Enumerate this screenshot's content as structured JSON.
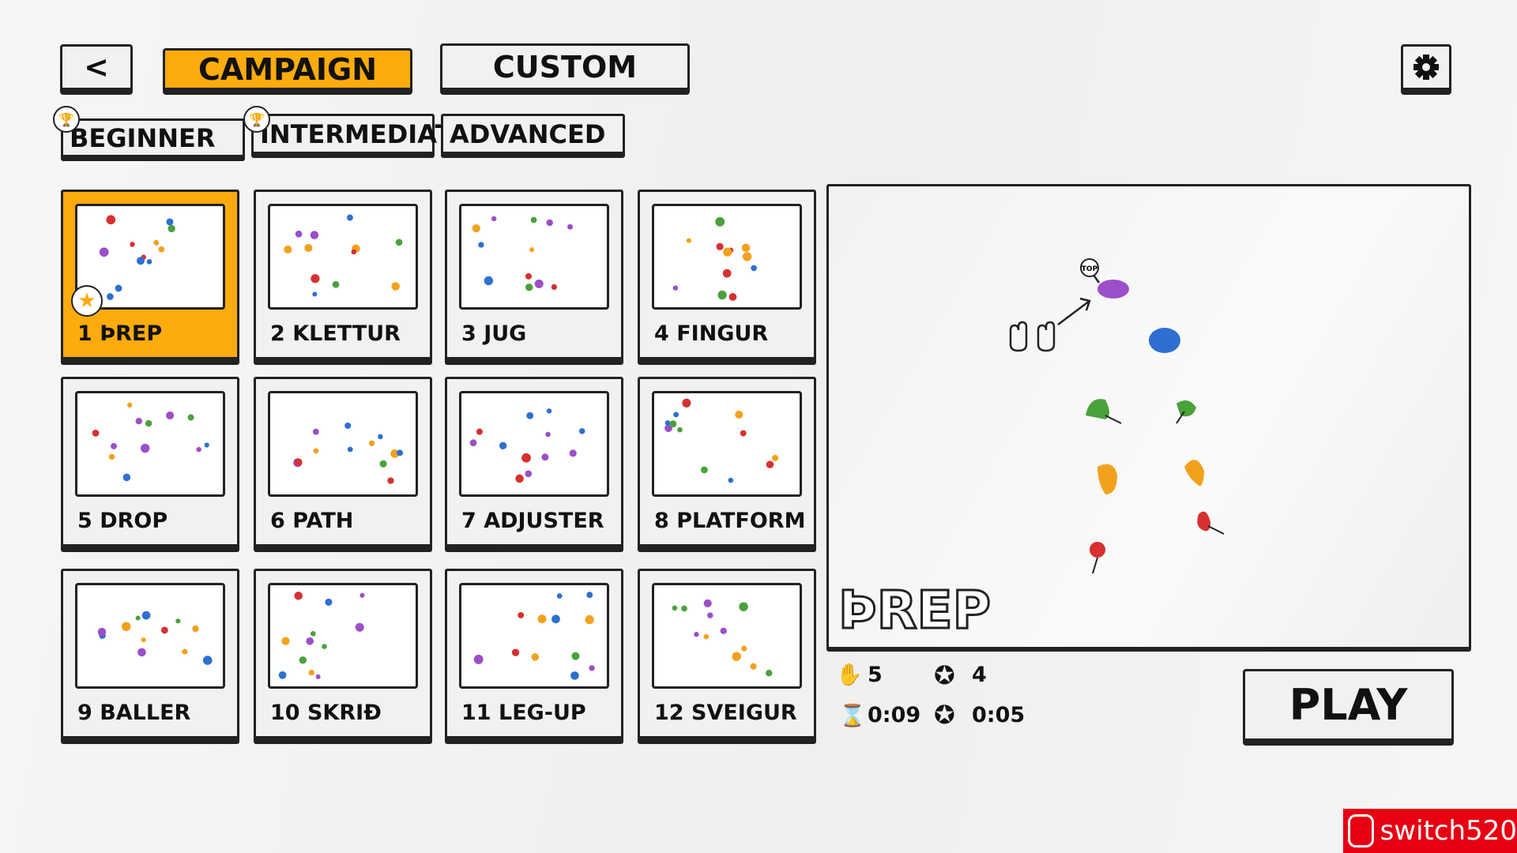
{
  "header": {
    "back": "<",
    "campaign": "CAMPAIGN",
    "custom": "CUSTOM"
  },
  "tabs": [
    "BEGINNER",
    "INTERMEDIATE",
    "ADVANCED"
  ],
  "levels": [
    {
      "number": "1",
      "name": "ÞREP"
    },
    {
      "number": "2",
      "name": "KLETTUR"
    },
    {
      "number": "3",
      "name": "JUG"
    },
    {
      "number": "4",
      "name": "FINGUR"
    },
    {
      "number": "5",
      "name": "DROP"
    },
    {
      "number": "6",
      "name": "PATH"
    },
    {
      "number": "7",
      "name": "ADJUSTER"
    },
    {
      "number": "8",
      "name": "PLATFORM"
    },
    {
      "number": "9",
      "name": "BALLER"
    },
    {
      "number": "10",
      "name": "SKRIÐ"
    },
    {
      "number": "11",
      "name": "LEG-UP"
    },
    {
      "number": "12",
      "name": "SVEIGUR"
    }
  ],
  "preview": {
    "title": "ÞREP",
    "top_label": "TOP"
  },
  "stats": {
    "moves": "5",
    "star_moves": "4",
    "time": "0:09",
    "star_time": "0:05"
  },
  "play": "PLAY",
  "watermark": "switch520"
}
